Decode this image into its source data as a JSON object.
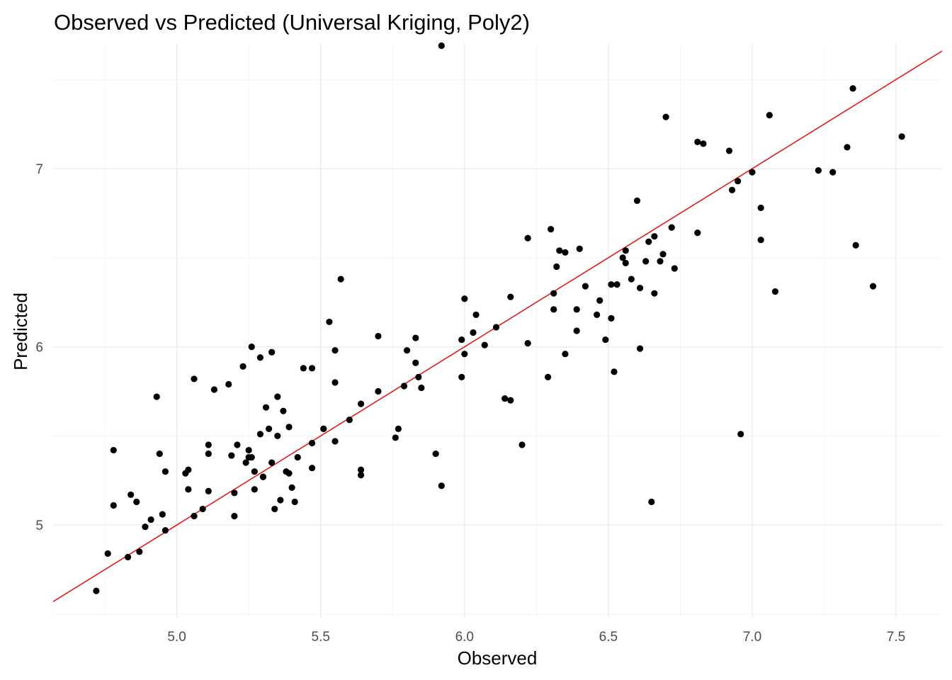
{
  "chart_data": {
    "type": "scatter",
    "title": "Observed vs Predicted (Universal Kriging, Poly2)",
    "xlabel": "Observed",
    "ylabel": "Predicted",
    "xlim": [
      4.57,
      7.66
    ],
    "ylim": [
      4.48,
      7.7
    ],
    "x_ticks": [
      5.0,
      5.5,
      6.0,
      6.5,
      7.0,
      7.5
    ],
    "x_tick_labels": [
      "5.0",
      "5.5",
      "6.0",
      "6.5",
      "7.0",
      "7.5"
    ],
    "y_ticks": [
      5,
      6,
      7
    ],
    "y_tick_labels": [
      "5",
      "6",
      "7"
    ],
    "grid": true,
    "reference_line": {
      "type": "y=x",
      "color": "#e41a1c"
    },
    "point_color": "#000000",
    "points": [
      [
        4.72,
        4.63
      ],
      [
        4.76,
        4.84
      ],
      [
        4.78,
        5.11
      ],
      [
        4.78,
        5.42
      ],
      [
        4.83,
        4.82
      ],
      [
        4.84,
        5.17
      ],
      [
        4.86,
        5.13
      ],
      [
        4.87,
        4.85
      ],
      [
        4.89,
        4.99
      ],
      [
        4.91,
        5.03
      ],
      [
        4.93,
        5.72
      ],
      [
        4.94,
        5.4
      ],
      [
        4.95,
        5.06
      ],
      [
        4.96,
        5.3
      ],
      [
        4.96,
        4.97
      ],
      [
        5.03,
        5.29
      ],
      [
        5.04,
        5.31
      ],
      [
        5.04,
        5.2
      ],
      [
        5.06,
        5.82
      ],
      [
        5.06,
        5.05
      ],
      [
        5.09,
        5.09
      ],
      [
        5.11,
        5.45
      ],
      [
        5.11,
        5.4
      ],
      [
        5.11,
        5.19
      ],
      [
        5.13,
        5.76
      ],
      [
        5.18,
        5.79
      ],
      [
        5.19,
        5.39
      ],
      [
        5.2,
        5.18
      ],
      [
        5.2,
        5.05
      ],
      [
        5.21,
        5.45
      ],
      [
        5.23,
        5.89
      ],
      [
        5.24,
        5.35
      ],
      [
        5.25,
        5.42
      ],
      [
        5.25,
        5.38
      ],
      [
        5.26,
        6.0
      ],
      [
        5.26,
        5.38
      ],
      [
        5.27,
        5.3
      ],
      [
        5.27,
        5.2
      ],
      [
        5.29,
        5.94
      ],
      [
        5.29,
        5.51
      ],
      [
        5.3,
        5.27
      ],
      [
        5.3,
        5.27
      ],
      [
        5.31,
        5.66
      ],
      [
        5.32,
        5.54
      ],
      [
        5.33,
        5.97
      ],
      [
        5.33,
        5.35
      ],
      [
        5.34,
        5.09
      ],
      [
        5.35,
        5.72
      ],
      [
        5.35,
        5.5
      ],
      [
        5.36,
        5.14
      ],
      [
        5.37,
        5.64
      ],
      [
        5.38,
        5.3
      ],
      [
        5.39,
        5.55
      ],
      [
        5.39,
        5.29
      ],
      [
        5.4,
        5.21
      ],
      [
        5.41,
        5.13
      ],
      [
        5.42,
        5.38
      ],
      [
        5.44,
        5.88
      ],
      [
        5.47,
        5.88
      ],
      [
        5.47,
        5.46
      ],
      [
        5.47,
        5.32
      ],
      [
        5.51,
        5.54
      ],
      [
        5.51,
        5.54
      ],
      [
        5.53,
        6.14
      ],
      [
        5.55,
        5.98
      ],
      [
        5.55,
        5.8
      ],
      [
        5.55,
        5.47
      ],
      [
        5.57,
        6.38
      ],
      [
        5.6,
        5.59
      ],
      [
        5.64,
        5.68
      ],
      [
        5.64,
        5.31
      ],
      [
        5.64,
        5.28
      ],
      [
        5.7,
        5.75
      ],
      [
        5.7,
        6.06
      ],
      [
        5.76,
        5.49
      ],
      [
        5.77,
        5.54
      ],
      [
        5.79,
        5.78
      ],
      [
        5.8,
        5.98
      ],
      [
        5.83,
        6.05
      ],
      [
        5.83,
        5.91
      ],
      [
        5.84,
        5.83
      ],
      [
        5.85,
        5.77
      ],
      [
        5.9,
        5.4
      ],
      [
        5.92,
        5.22
      ],
      [
        5.92,
        7.69
      ],
      [
        5.99,
        6.04
      ],
      [
        5.99,
        5.83
      ],
      [
        6.0,
        5.96
      ],
      [
        6.0,
        6.27
      ],
      [
        6.03,
        6.08
      ],
      [
        6.04,
        6.18
      ],
      [
        6.07,
        6.01
      ],
      [
        6.11,
        6.11
      ],
      [
        6.14,
        5.71
      ],
      [
        6.16,
        5.7
      ],
      [
        6.16,
        6.28
      ],
      [
        6.2,
        5.45
      ],
      [
        6.22,
        6.02
      ],
      [
        6.22,
        6.61
      ],
      [
        6.29,
        5.83
      ],
      [
        6.3,
        6.66
      ],
      [
        6.31,
        6.21
      ],
      [
        6.31,
        6.3
      ],
      [
        6.32,
        6.45
      ],
      [
        6.33,
        6.54
      ],
      [
        6.35,
        5.96
      ],
      [
        6.35,
        6.53
      ],
      [
        6.39,
        6.09
      ],
      [
        6.39,
        6.21
      ],
      [
        6.4,
        6.55
      ],
      [
        6.42,
        6.34
      ],
      [
        6.46,
        6.18
      ],
      [
        6.47,
        6.26
      ],
      [
        6.49,
        6.04
      ],
      [
        6.51,
        6.16
      ],
      [
        6.51,
        6.35
      ],
      [
        6.52,
        5.86
      ],
      [
        6.53,
        6.35
      ],
      [
        6.55,
        6.5
      ],
      [
        6.56,
        6.54
      ],
      [
        6.56,
        6.47
      ],
      [
        6.58,
        6.38
      ],
      [
        6.6,
        6.82
      ],
      [
        6.61,
        5.99
      ],
      [
        6.61,
        6.33
      ],
      [
        6.63,
        6.48
      ],
      [
        6.64,
        6.59
      ],
      [
        6.65,
        5.13
      ],
      [
        6.66,
        6.62
      ],
      [
        6.66,
        6.3
      ],
      [
        6.68,
        6.48
      ],
      [
        6.69,
        6.52
      ],
      [
        6.7,
        7.29
      ],
      [
        6.72,
        6.67
      ],
      [
        6.73,
        6.44
      ],
      [
        6.81,
        6.64
      ],
      [
        6.81,
        7.15
      ],
      [
        6.83,
        7.14
      ],
      [
        6.92,
        7.1
      ],
      [
        6.93,
        6.88
      ],
      [
        6.95,
        6.93
      ],
      [
        6.96,
        5.51
      ],
      [
        7.0,
        6.98
      ],
      [
        7.03,
        6.78
      ],
      [
        7.03,
        6.6
      ],
      [
        7.06,
        7.3
      ],
      [
        7.08,
        6.31
      ],
      [
        7.23,
        6.99
      ],
      [
        7.28,
        6.98
      ],
      [
        7.33,
        7.12
      ],
      [
        7.35,
        7.45
      ],
      [
        7.36,
        6.57
      ],
      [
        7.42,
        6.34
      ],
      [
        7.52,
        7.18
      ]
    ]
  }
}
